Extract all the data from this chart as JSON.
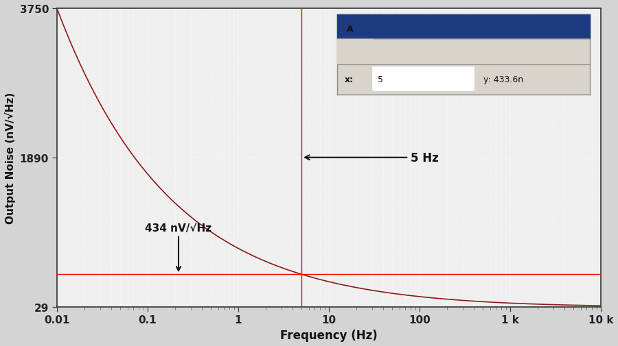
{
  "title": "",
  "xlabel": "Frequency (Hz)",
  "ylabel": "Output Noise (nV/√Hz)",
  "background_color": "#d4d4d4",
  "plot_bg_color": "#efefef",
  "curve_color": "#8b1a1a",
  "grid_color": "#ffffff",
  "xmin": 0.01,
  "xmax": 10000,
  "ymin": 29,
  "ymax": 3750,
  "yticks": [
    29,
    1890,
    3750
  ],
  "xtick_labels": [
    "0.01",
    "0.1",
    "1",
    "10",
    "100",
    "1 k",
    "10 k"
  ],
  "xtick_vals": [
    0.01,
    0.1,
    1,
    10,
    100,
    1000,
    10000
  ],
  "hline_y": 433.6,
  "vline_x": 5,
  "annotation_freq": "5 Hz",
  "annotation_noise": "434 nV/√Hz",
  "noise_floor": 29,
  "noise_peak": 3750
}
